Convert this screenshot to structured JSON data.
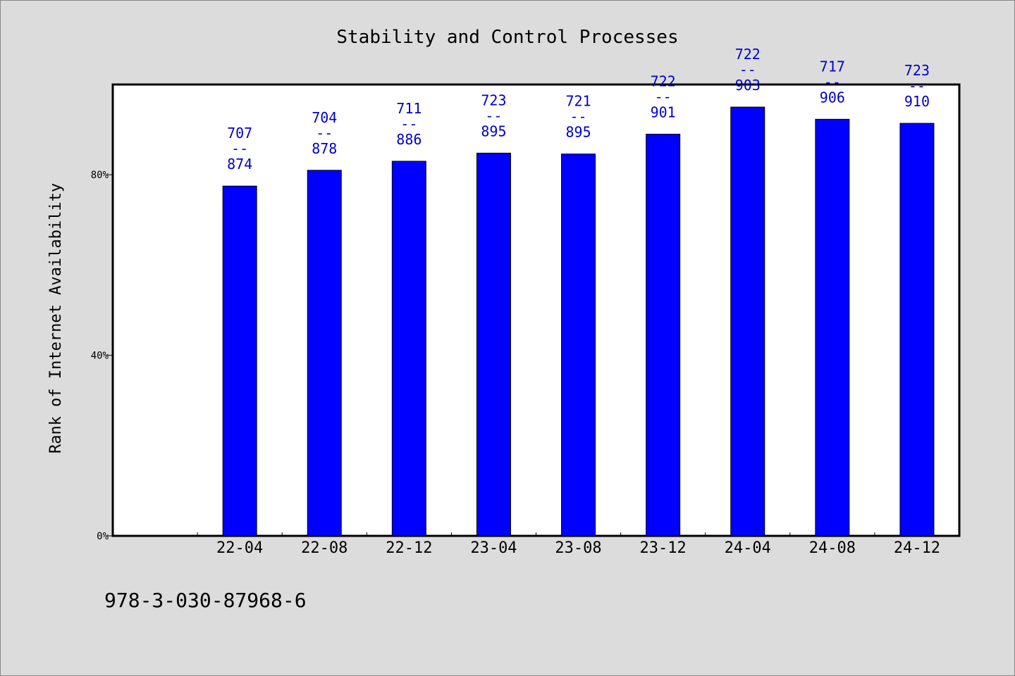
{
  "chart_data": {
    "type": "bar",
    "title": "Stability and Control Processes",
    "ylabel": "Rank of Internet Availability",
    "xlabel": "",
    "ylim": [
      0,
      100
    ],
    "yticks": [
      {
        "value": 0,
        "label": "0%"
      },
      {
        "value": 40,
        "label": "40%"
      },
      {
        "value": 80,
        "label": "80%"
      }
    ],
    "categories": [
      "22-04",
      "22-08",
      "22-12",
      "23-04",
      "23-08",
      "23-12",
      "24-04",
      "24-08",
      "24-12"
    ],
    "values": [
      77.5,
      81,
      83,
      84.8,
      84.6,
      89,
      95,
      92.3,
      91.4
    ],
    "annotations": [
      {
        "top": "707",
        "sep": "--",
        "bottom": "874"
      },
      {
        "top": "704",
        "sep": "--",
        "bottom": "878"
      },
      {
        "top": "711",
        "sep": "--",
        "bottom": "886"
      },
      {
        "top": "723",
        "sep": "--",
        "bottom": "895"
      },
      {
        "top": "721",
        "sep": "--",
        "bottom": "895"
      },
      {
        "top": "722",
        "sep": "--",
        "bottom": "901"
      },
      {
        "top": "722",
        "sep": "--",
        "bottom": "903"
      },
      {
        "top": "717",
        "sep": "--",
        "bottom": "906"
      },
      {
        "top": "723",
        "sep": "--",
        "bottom": "910"
      }
    ],
    "bar_color": "#0000ff",
    "label_color": "#0000cc",
    "grid": false,
    "legend": "none"
  },
  "footer": {
    "isbn": "978-3-030-87968-6"
  }
}
